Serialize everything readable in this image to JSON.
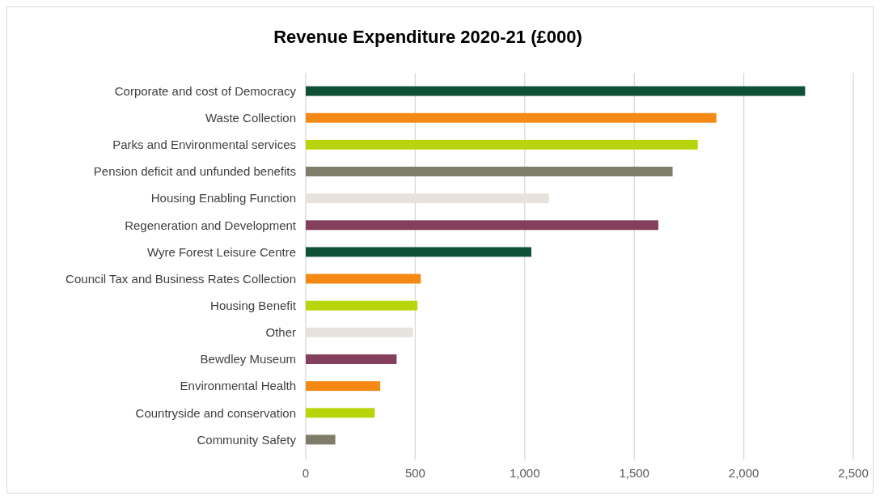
{
  "chart_data": {
    "type": "bar",
    "orientation": "horizontal",
    "title": "Revenue Expenditure 2020-21 (£000)",
    "categories": [
      "Corporate and cost of Democracy",
      "Waste Collection",
      "Parks and Environmental services",
      "Pension deficit and unfunded benefits",
      "Housing Enabling Function",
      "Regeneration and Development",
      "Wyre Forest Leisure Centre",
      "Council Tax and Business Rates Collection",
      "Housing Benefit",
      "Other",
      "Bewdley Museum",
      "Environmental Health",
      "Countryside and conservation",
      "Community Safety"
    ],
    "values": [
      2280,
      1875,
      1790,
      1675,
      1110,
      1610,
      1030,
      525,
      510,
      490,
      415,
      340,
      315,
      135
    ],
    "colors": [
      "#0f5039",
      "#f58915",
      "#b8d50b",
      "#7d7d69",
      "#e7e2db",
      "#843f5c",
      "#0f5039",
      "#f58915",
      "#b8d50b",
      "#e7e2db",
      "#843f5c",
      "#f58915",
      "#b8d50b",
      "#7d7d69"
    ],
    "xlim": [
      0,
      2500
    ],
    "xticks": [
      0,
      500,
      {
        "value": 1000,
        "label": "1,000"
      },
      {
        "value": 1500,
        "label": "1,500"
      },
      {
        "value": 2000,
        "label": "2,000"
      },
      {
        "value": 2500,
        "label": "2,500"
      }
    ],
    "grid": "x"
  }
}
